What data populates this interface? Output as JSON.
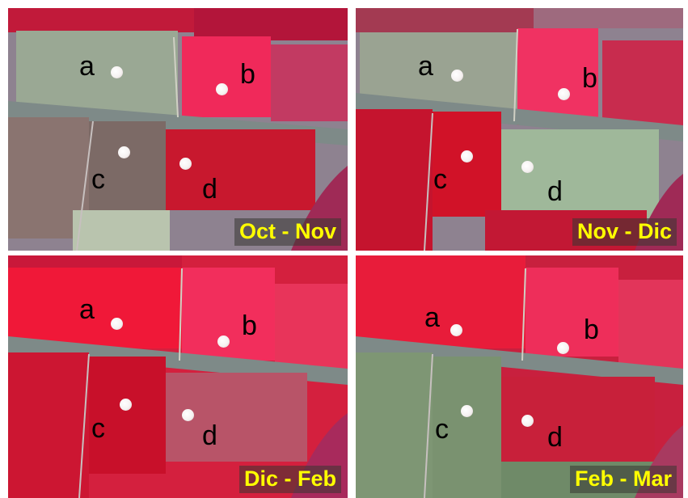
{
  "panels": [
    {
      "period_label": "Oct - Nov",
      "points": [
        {
          "label": "a"
        },
        {
          "label": "b"
        },
        {
          "label": "c"
        },
        {
          "label": "d"
        }
      ],
      "field_colors": {
        "a": "#9aa894",
        "b": "#f0295a",
        "c": "#7c6a66",
        "d": "#c8182e"
      }
    },
    {
      "period_label": "Nov - Dic",
      "points": [
        {
          "label": "a"
        },
        {
          "label": "b"
        },
        {
          "label": "c"
        },
        {
          "label": "d"
        }
      ],
      "field_colors": {
        "a": "#9aa392",
        "b": "#f03262",
        "c": "#d11228",
        "d": "#9fb89a"
      }
    },
    {
      "period_label": "Dic - Feb",
      "points": [
        {
          "label": "a"
        },
        {
          "label": "b"
        },
        {
          "label": "c"
        },
        {
          "label": "d"
        }
      ],
      "field_colors": {
        "a": "#f01838",
        "b": "#f22e5c",
        "c": "#c8102a",
        "d": "#b85468"
      }
    },
    {
      "period_label": "Feb - Mar",
      "points": [
        {
          "label": "a"
        },
        {
          "label": "b"
        },
        {
          "label": "c"
        },
        {
          "label": "d"
        }
      ],
      "field_colors": {
        "a": "#e81c3a",
        "b": "#ee2e5a",
        "c": "#7a9270",
        "d": "#c8203a"
      }
    }
  ],
  "colors": {
    "period_text": "#ffff00",
    "road": "#7e8a88",
    "background_field": "#8e8290",
    "point_marker": "#f6f2f2"
  }
}
